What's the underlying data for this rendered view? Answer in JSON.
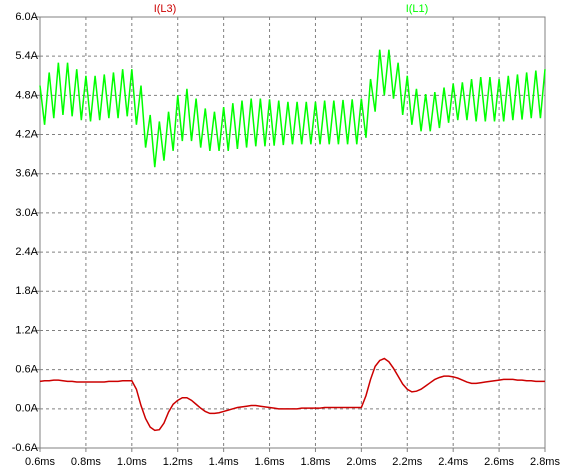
{
  "chart_data": {
    "type": "line",
    "x": [
      0.6,
      0.62,
      0.64,
      0.66,
      0.68,
      0.7,
      0.72,
      0.74,
      0.76,
      0.78,
      0.8,
      0.82,
      0.84,
      0.86,
      0.88,
      0.9,
      0.92,
      0.94,
      0.96,
      0.98,
      1.0,
      1.02,
      1.04,
      1.06,
      1.08,
      1.1,
      1.12,
      1.14,
      1.16,
      1.18,
      1.2,
      1.22,
      1.24,
      1.26,
      1.28,
      1.3,
      1.32,
      1.34,
      1.36,
      1.38,
      1.4,
      1.42,
      1.44,
      1.46,
      1.48,
      1.5,
      1.52,
      1.54,
      1.56,
      1.58,
      1.6,
      1.62,
      1.64,
      1.66,
      1.68,
      1.7,
      1.72,
      1.74,
      1.76,
      1.78,
      1.8,
      1.82,
      1.84,
      1.86,
      1.88,
      1.9,
      1.92,
      1.94,
      1.96,
      1.98,
      2.0,
      2.02,
      2.04,
      2.06,
      2.08,
      2.1,
      2.12,
      2.14,
      2.16,
      2.18,
      2.2,
      2.22,
      2.24,
      2.26,
      2.28,
      2.3,
      2.32,
      2.34,
      2.36,
      2.38,
      2.4,
      2.42,
      2.44,
      2.46,
      2.48,
      2.5,
      2.52,
      2.54,
      2.56,
      2.58,
      2.6,
      2.62,
      2.64,
      2.66,
      2.68,
      2.7,
      2.72,
      2.74,
      2.76,
      2.78,
      2.8
    ],
    "series": [
      {
        "name": "I(L3)",
        "color": "#cc0000",
        "values": [
          0.42,
          0.43,
          0.43,
          0.44,
          0.44,
          0.43,
          0.42,
          0.42,
          0.41,
          0.41,
          0.41,
          0.41,
          0.41,
          0.41,
          0.41,
          0.42,
          0.42,
          0.42,
          0.43,
          0.43,
          0.43,
          0.3,
          0.05,
          -0.15,
          -0.28,
          -0.33,
          -0.32,
          -0.22,
          -0.05,
          0.07,
          0.13,
          0.17,
          0.17,
          0.13,
          0.07,
          0.01,
          -0.04,
          -0.07,
          -0.07,
          -0.06,
          -0.04,
          -0.02,
          0.0,
          0.02,
          0.03,
          0.04,
          0.05,
          0.05,
          0.04,
          0.03,
          0.02,
          0.01,
          0.0,
          0.0,
          0.0,
          0.0,
          0.0,
          0.01,
          0.01,
          0.01,
          0.01,
          0.01,
          0.02,
          0.02,
          0.02,
          0.02,
          0.02,
          0.02,
          0.02,
          0.02,
          0.02,
          0.2,
          0.45,
          0.65,
          0.74,
          0.77,
          0.72,
          0.62,
          0.5,
          0.38,
          0.3,
          0.26,
          0.27,
          0.3,
          0.35,
          0.4,
          0.45,
          0.48,
          0.5,
          0.5,
          0.49,
          0.47,
          0.44,
          0.41,
          0.39,
          0.39,
          0.4,
          0.41,
          0.42,
          0.43,
          0.44,
          0.45,
          0.45,
          0.45,
          0.44,
          0.44,
          0.43,
          0.43,
          0.42,
          0.42,
          0.42
        ]
      },
      {
        "name": "I(L1)",
        "color": "#00ff00",
        "values": [
          4.95,
          4.35,
          5.15,
          4.45,
          5.3,
          4.5,
          5.3,
          4.48,
          5.2,
          4.42,
          5.1,
          4.4,
          5.1,
          4.42,
          5.12,
          4.45,
          5.15,
          4.45,
          5.2,
          4.48,
          5.2,
          4.35,
          4.95,
          4.0,
          4.5,
          3.7,
          4.4,
          3.8,
          4.55,
          3.95,
          4.8,
          4.1,
          4.9,
          4.1,
          4.75,
          4.0,
          4.6,
          3.95,
          4.55,
          3.95,
          4.62,
          3.95,
          4.68,
          3.98,
          4.72,
          4.0,
          4.75,
          4.02,
          4.75,
          4.02,
          4.74,
          4.03,
          4.72,
          4.04,
          4.7,
          4.05,
          4.7,
          4.05,
          4.7,
          4.05,
          4.7,
          4.05,
          4.72,
          4.05,
          4.72,
          4.05,
          4.73,
          4.05,
          4.74,
          4.05,
          4.75,
          4.15,
          5.05,
          4.55,
          5.5,
          4.8,
          5.5,
          4.75,
          5.3,
          4.5,
          5.1,
          4.35,
          4.9,
          4.25,
          4.82,
          4.25,
          4.85,
          4.3,
          4.92,
          4.38,
          4.98,
          4.42,
          5.0,
          4.42,
          5.05,
          4.4,
          5.08,
          4.4,
          5.08,
          4.4,
          5.05,
          4.4,
          5.1,
          4.42,
          5.12,
          4.43,
          5.15,
          4.45,
          5.18,
          4.45,
          5.2
        ]
      }
    ],
    "xlim": [
      0.6,
      2.8
    ],
    "xticks": [
      {
        "value": 0.6,
        "label": "0.6ms"
      },
      {
        "value": 0.8,
        "label": "0.8ms"
      },
      {
        "value": 1.0,
        "label": "1.0ms"
      },
      {
        "value": 1.2,
        "label": "1.2ms"
      },
      {
        "value": 1.4,
        "label": "1.4ms"
      },
      {
        "value": 1.6,
        "label": "1.6ms"
      },
      {
        "value": 1.8,
        "label": "1.8ms"
      },
      {
        "value": 2.0,
        "label": "2.0ms"
      },
      {
        "value": 2.2,
        "label": "2.2ms"
      },
      {
        "value": 2.4,
        "label": "2.4ms"
      },
      {
        "value": 2.6,
        "label": "2.6ms"
      },
      {
        "value": 2.8,
        "label": "2.8ms"
      }
    ],
    "ylim": [
      -0.6,
      6.0
    ],
    "yticks": [
      {
        "value": -0.6,
        "label": "-0.6A"
      },
      {
        "value": 0.0,
        "label": "0.0A"
      },
      {
        "value": 0.6,
        "label": "0.6A"
      },
      {
        "value": 1.2,
        "label": "1.2A"
      },
      {
        "value": 1.8,
        "label": "1.8A"
      },
      {
        "value": 2.4,
        "label": "2.4A"
      },
      {
        "value": 3.0,
        "label": "3.0A"
      },
      {
        "value": 3.6,
        "label": "3.6A"
      },
      {
        "value": 4.2,
        "label": "4.2A"
      },
      {
        "value": 4.8,
        "label": "4.8A"
      },
      {
        "value": 5.4,
        "label": "5.4A"
      },
      {
        "value": 6.0,
        "label": "6.0A"
      }
    ],
    "grid": true
  }
}
